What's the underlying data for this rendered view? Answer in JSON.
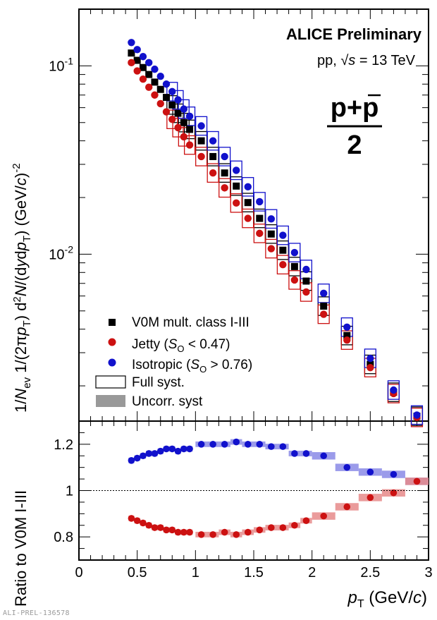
{
  "header": {
    "experiment": "ALICE Preliminary",
    "system_prefix": "pp, ",
    "sqrt_symbol": "√",
    "energy_var": "s",
    "energy_value": " = 13 TeV",
    "particle_top": "p+p",
    "particle_bottom": "2"
  },
  "footer": {
    "id": "ALI-PREL-136578"
  },
  "legend": {
    "entries": [
      {
        "label": "V0M mult. class I-III",
        "marker": "square",
        "color": "#000000"
      },
      {
        "label": "Jetty (S_O < 0.47)",
        "marker": "circle",
        "color": "#cc1111"
      },
      {
        "label": "Isotropic (S_O > 0.76)",
        "marker": "circle",
        "color": "#1111cc"
      },
      {
        "label": "Full syst.",
        "marker": "open-box",
        "color": "#000000"
      },
      {
        "label": "Uncorr. syst",
        "marker": "filled-box",
        "color": "#999999"
      }
    ]
  },
  "chart_data": [
    {
      "type": "scatter",
      "panel": "spectra",
      "ylabel": "1/N_ev 1/(2πp_T) d²N/(dydp_T) (GeV/c)^-2",
      "yscale": "log",
      "ylim": [
        0.0013,
        0.2
      ],
      "xlim": [
        0,
        3
      ],
      "ytick_labels": [
        "10^-1",
        "10^-2"
      ],
      "x": [
        0.45,
        0.5,
        0.55,
        0.6,
        0.65,
        0.7,
        0.75,
        0.8,
        0.85,
        0.9,
        0.95,
        1.05,
        1.15,
        1.25,
        1.35,
        1.45,
        1.55,
        1.65,
        1.75,
        1.85,
        1.95,
        2.1,
        2.3,
        2.5,
        2.7,
        2.9
      ],
      "series": [
        {
          "name": "V0M mult. class I-III",
          "color": "#000000",
          "marker": "square",
          "values": [
            0.117,
            0.107,
            0.098,
            0.09,
            0.082,
            0.075,
            0.068,
            0.062,
            0.056,
            0.05,
            0.046,
            0.04,
            0.033,
            0.027,
            0.023,
            0.0188,
            0.0155,
            0.0128,
            0.0105,
            0.0086,
            0.0072,
            0.0053,
            0.0037,
            0.0026,
            0.00185,
            0.00138
          ]
        },
        {
          "name": "Jetty (S_O < 0.47)",
          "color": "#cc1111",
          "marker": "circle",
          "values": [
            0.104,
            0.094,
            0.085,
            0.077,
            0.07,
            0.063,
            0.057,
            0.052,
            0.047,
            0.042,
            0.038,
            0.033,
            0.027,
            0.0225,
            0.0187,
            0.0155,
            0.0129,
            0.0107,
            0.0088,
            0.0073,
            0.0063,
            0.0048,
            0.0035,
            0.0025,
            0.00182,
            0.00136
          ]
        },
        {
          "name": "Isotropic (S_O > 0.76)",
          "color": "#1111cc",
          "marker": "circle",
          "values": [
            0.133,
            0.122,
            0.112,
            0.104,
            0.096,
            0.088,
            0.08,
            0.073,
            0.066,
            0.059,
            0.054,
            0.048,
            0.04,
            0.033,
            0.0279,
            0.0228,
            0.019,
            0.0154,
            0.0126,
            0.0102,
            0.0083,
            0.0062,
            0.0041,
            0.0028,
            0.0019,
            0.0014
          ]
        }
      ]
    },
    {
      "type": "scatter",
      "panel": "ratio",
      "ylabel": "Ratio to V0M I-III",
      "xlabel": "p_T (GeV/c)",
      "ylim": [
        0.7,
        1.3
      ],
      "xlim": [
        0,
        3
      ],
      "yticks": [
        0.8,
        1,
        1.2
      ],
      "ytick_labels": [
        "0.8",
        "1",
        "1.2"
      ],
      "xticks": [
        0,
        0.5,
        1,
        1.5,
        2,
        2.5,
        3
      ],
      "xtick_labels": [
        "0",
        "0.5",
        "1",
        "1.5",
        "2",
        "2.5",
        "3"
      ],
      "reference_line": 1,
      "x": [
        0.45,
        0.5,
        0.55,
        0.6,
        0.65,
        0.7,
        0.75,
        0.8,
        0.85,
        0.9,
        0.95,
        1.05,
        1.15,
        1.25,
        1.35,
        1.45,
        1.55,
        1.65,
        1.75,
        1.85,
        1.95,
        2.1,
        2.3,
        2.5,
        2.7,
        2.9
      ],
      "series": [
        {
          "name": "Isotropic (S_O > 0.76)",
          "color": "#1111cc",
          "values": [
            1.13,
            1.14,
            1.15,
            1.16,
            1.16,
            1.17,
            1.18,
            1.18,
            1.17,
            1.18,
            1.18,
            1.2,
            1.2,
            1.2,
            1.21,
            1.2,
            1.2,
            1.19,
            1.19,
            1.16,
            1.16,
            1.15,
            1.1,
            1.08,
            1.07,
            1.04
          ]
        },
        {
          "name": "Jetty (S_O < 0.47)",
          "color": "#cc1111",
          "values": [
            0.88,
            0.87,
            0.86,
            0.85,
            0.84,
            0.84,
            0.83,
            0.83,
            0.82,
            0.82,
            0.82,
            0.81,
            0.81,
            0.82,
            0.81,
            0.82,
            0.83,
            0.84,
            0.84,
            0.85,
            0.87,
            0.89,
            0.93,
            0.97,
            0.99,
            1.04
          ]
        }
      ]
    }
  ]
}
